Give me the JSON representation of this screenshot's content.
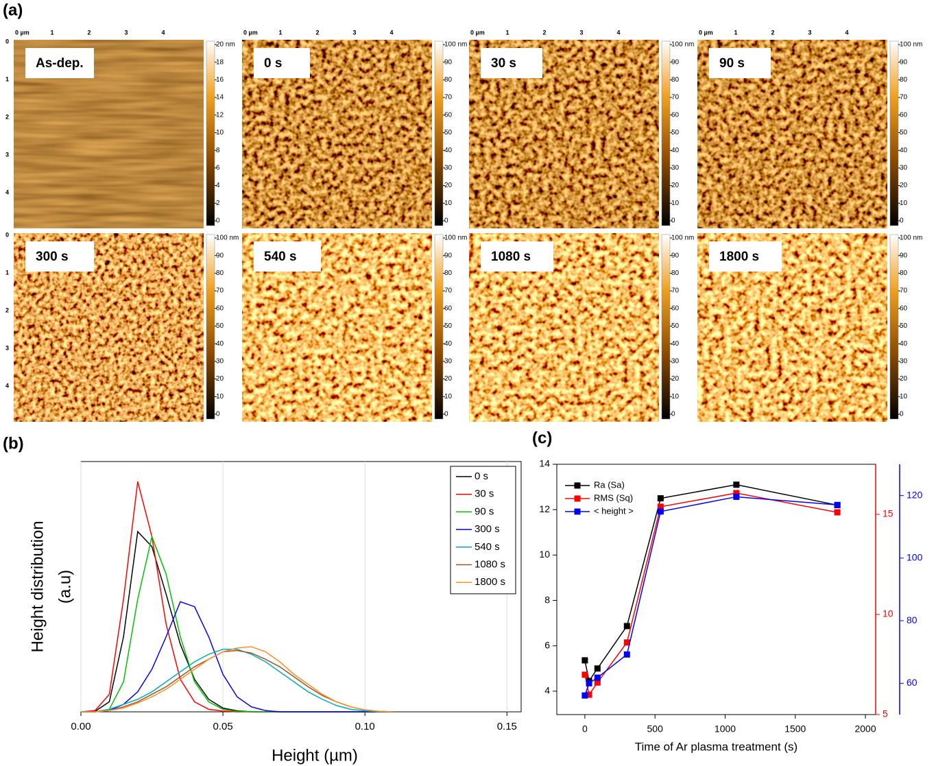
{
  "panel_labels": [
    "(a)",
    "(b)",
    "(c)"
  ],
  "afm": {
    "x_ticks": [
      "0 µm",
      "1",
      "2",
      "3",
      "4"
    ],
    "y_ticks": [
      "0",
      "1",
      "2",
      "3",
      "4"
    ],
    "panels": [
      {
        "label": "As-dep.",
        "colorbar": [
          "20 nm",
          "18",
          "16",
          "14",
          "12",
          "10",
          "8",
          "6",
          "4",
          "2",
          "0"
        ]
      },
      {
        "label": "0 s",
        "colorbar": [
          "100 nm",
          "90",
          "80",
          "70",
          "60",
          "50",
          "40",
          "30",
          "20",
          "10",
          "0"
        ]
      },
      {
        "label": "30 s",
        "colorbar": [
          "100 nm",
          "90",
          "80",
          "70",
          "60",
          "50",
          "40",
          "30",
          "20",
          "10",
          "0"
        ]
      },
      {
        "label": "90 s",
        "colorbar": [
          "100 nm",
          "90",
          "80",
          "70",
          "60",
          "50",
          "40",
          "30",
          "20",
          "10",
          "0"
        ]
      },
      {
        "label": "300 s",
        "colorbar": [
          "100 nm",
          "90",
          "80",
          "70",
          "60",
          "50",
          "40",
          "30",
          "20",
          "10",
          "0"
        ]
      },
      {
        "label": "540 s",
        "colorbar": [
          "100 nm",
          "90",
          "80",
          "70",
          "60",
          "50",
          "40",
          "30",
          "20",
          "10",
          "0"
        ]
      },
      {
        "label": "1080 s",
        "colorbar": [
          "100 nm",
          "90",
          "80",
          "70",
          "60",
          "50",
          "40",
          "30",
          "20",
          "10",
          "0"
        ]
      },
      {
        "label": "1800 s",
        "colorbar": [
          "100 nm",
          "90",
          "80",
          "70",
          "60",
          "50",
          "40",
          "30",
          "20",
          "10",
          "0"
        ]
      }
    ]
  },
  "chart_data": [
    {
      "type": "line",
      "xlabel": "Height (µm)",
      "ylabel": [
        "Height distribution",
        "(a.u)"
      ],
      "x": [
        0,
        0.005,
        0.01,
        0.015,
        0.02,
        0.025,
        0.03,
        0.035,
        0.04,
        0.045,
        0.05,
        0.055,
        0.06,
        0.065,
        0.07,
        0.075,
        0.08,
        0.085,
        0.09,
        0.095,
        0.1,
        0.105,
        0.11
      ],
      "xlim": [
        0,
        0.155
      ],
      "xticks": [
        {
          "value": 0,
          "label": "0.00"
        },
        {
          "value": 0.05,
          "label": "0.05"
        },
        {
          "value": 0.1,
          "label": "0.10"
        },
        {
          "value": 0.15,
          "label": "0.15"
        }
      ],
      "ylim": [
        0,
        1
      ],
      "grid": true,
      "legend": "upper right",
      "series": [
        {
          "name": "0 s",
          "color": "#000000",
          "values": [
            0,
            0.002,
            0.04,
            0.3,
            0.72,
            0.66,
            0.47,
            0.27,
            0.13,
            0.05,
            0.015,
            0.004,
            0,
            0,
            0,
            0,
            0,
            0,
            0,
            0,
            0,
            0,
            0
          ]
        },
        {
          "name": "30 s",
          "color": "#ff0000",
          "values": [
            0,
            0.005,
            0.07,
            0.45,
            0.92,
            0.7,
            0.35,
            0.13,
            0.04,
            0.01,
            0.003,
            0,
            0,
            0,
            0,
            0,
            0,
            0,
            0,
            0,
            0,
            0,
            0
          ]
        },
        {
          "name": "90 s",
          "color": "#00c000",
          "values": [
            0,
            0,
            0.01,
            0.12,
            0.45,
            0.7,
            0.55,
            0.3,
            0.12,
            0.04,
            0.01,
            0.002,
            0,
            0,
            0,
            0,
            0,
            0,
            0,
            0,
            0,
            0,
            0
          ]
        },
        {
          "name": "300 s",
          "color": "#0000ff",
          "values": [
            0,
            0,
            0.005,
            0.03,
            0.08,
            0.17,
            0.3,
            0.44,
            0.42,
            0.3,
            0.15,
            0.06,
            0.02,
            0.005,
            0,
            0,
            0,
            0,
            0,
            0,
            0,
            0,
            0
          ]
        },
        {
          "name": "540 s",
          "color": "#00b0b0",
          "values": [
            0,
            0,
            0.01,
            0.03,
            0.05,
            0.08,
            0.12,
            0.16,
            0.2,
            0.23,
            0.25,
            0.25,
            0.23,
            0.2,
            0.16,
            0.12,
            0.08,
            0.05,
            0.025,
            0.01,
            0.004,
            0,
            0
          ]
        },
        {
          "name": "1080 s",
          "color": "#a0522d",
          "values": [
            0,
            0,
            0.005,
            0.02,
            0.04,
            0.07,
            0.1,
            0.14,
            0.18,
            0.21,
            0.24,
            0.245,
            0.235,
            0.21,
            0.18,
            0.14,
            0.1,
            0.065,
            0.04,
            0.02,
            0.008,
            0.002,
            0
          ]
        },
        {
          "name": "1800 s",
          "color": "#ff9020",
          "values": [
            0,
            0,
            0.005,
            0.015,
            0.035,
            0.06,
            0.09,
            0.13,
            0.17,
            0.21,
            0.24,
            0.255,
            0.26,
            0.24,
            0.2,
            0.15,
            0.11,
            0.07,
            0.04,
            0.02,
            0.008,
            0.002,
            0
          ]
        }
      ]
    },
    {
      "type": "line",
      "markers": true,
      "xlabel": "Time of Ar plasma treatment (s)",
      "x": [
        0,
        30,
        90,
        300,
        540,
        1080,
        1800
      ],
      "xlim": [
        -200,
        2073
      ],
      "xticks": [
        0,
        500,
        1000,
        1500,
        2000
      ],
      "ylim": [
        2.97,
        14
      ],
      "yticks": [
        4,
        6,
        8,
        10,
        12,
        14
      ],
      "y2lim": [
        5,
        17.5
      ],
      "y2ticks": [
        5,
        10,
        15
      ],
      "y2color": "#ff0000",
      "y3lim": [
        50,
        130
      ],
      "y3ticks": [
        60,
        80,
        100,
        120
      ],
      "y3color": "#0000ff",
      "grid": false,
      "legend": "upper left",
      "series": [
        {
          "name": "Ra (Sa)",
          "color": "#000000",
          "values": [
            5.36,
            4.45,
            5.0,
            6.87,
            12.5,
            13.1,
            12.2
          ]
        },
        {
          "name": "RMS (Sq)",
          "color": "#ff0000",
          "axis": "y2",
          "values": [
            6.99,
            5.99,
            6.6,
            8.6,
            15.38,
            16.06,
            15.1
          ]
        },
        {
          "name": "< height >",
          "color": "#0000ff",
          "axis": "y3",
          "values": [
            56.1,
            60,
            61.8,
            69.2,
            114.9,
            119.6,
            117.0
          ]
        }
      ]
    }
  ]
}
